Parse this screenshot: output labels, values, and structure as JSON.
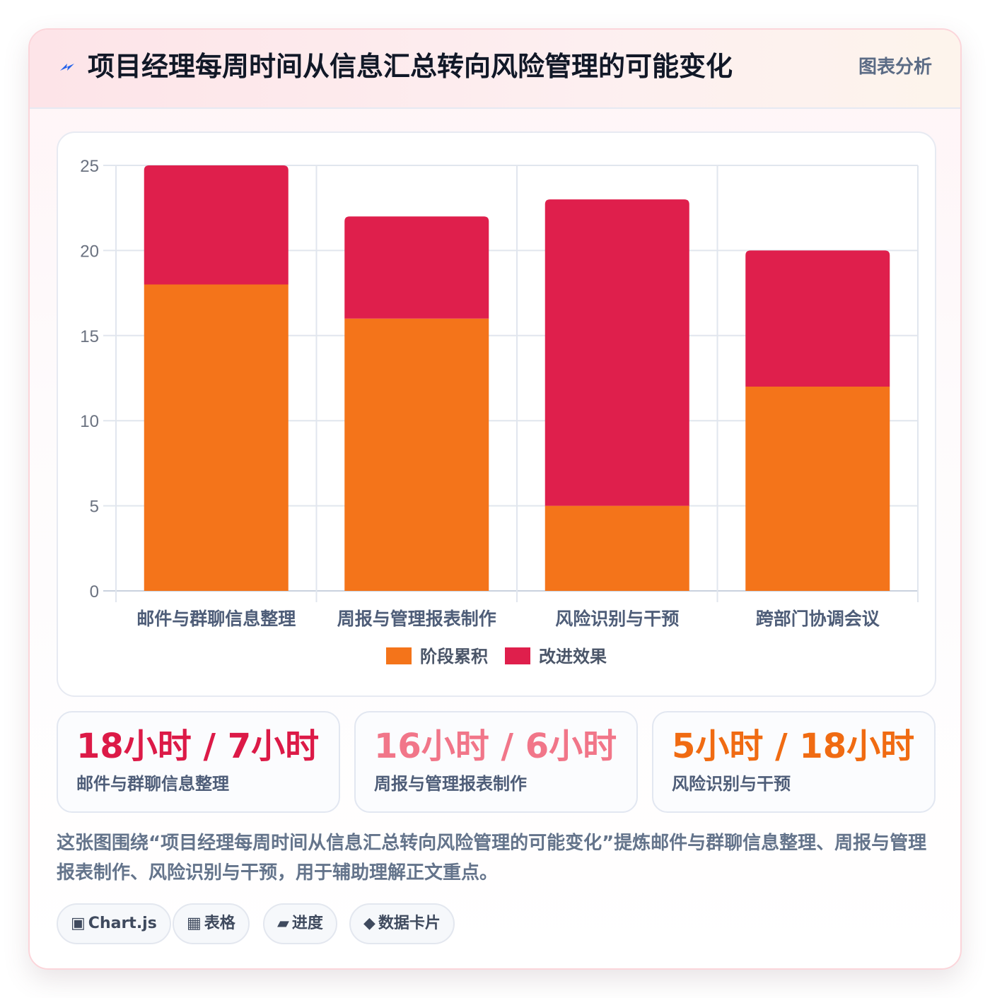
{
  "header": {
    "title": "项目经理每周时间从信息汇总转向风险管理的可能变化",
    "tag": "图表分析",
    "icon": "lightning-icon"
  },
  "chart_data": {
    "type": "bar",
    "stacked": true,
    "categories": [
      "邮件与群聊信息整理",
      "周报与管理报表制作",
      "风险识别与干预",
      "跨部门协调会议"
    ],
    "series": [
      {
        "name": "阶段累积",
        "values": [
          18,
          16,
          5,
          12
        ],
        "color": "#f4741a"
      },
      {
        "name": "改进效果",
        "values": [
          7,
          6,
          18,
          8
        ],
        "color": "#df1f4c"
      }
    ],
    "ylim": [
      0,
      25
    ],
    "yticks": [
      "0",
      "5",
      "10",
      "15",
      "20",
      "25"
    ],
    "grid": true,
    "legend_position": "bottom"
  },
  "stats": [
    {
      "value": "18小时 / 7小时",
      "label": "邮件与群聊信息整理",
      "color": "#dc1a47"
    },
    {
      "value": "16小时 / 6小时",
      "label": "周报与管理报表制作",
      "color": "#f17689"
    },
    {
      "value": "5小时 / 18小时",
      "label": "风险识别与干预",
      "color": "#f06b12"
    }
  ],
  "description": "这张图围绕“项目经理每周时间从信息汇总转向风险管理的可能变化”提炼邮件与群聊信息整理、周报与管理报表制作、风险识别与干预，用于辅助理解正文重点。",
  "chips": [
    {
      "icon": "▣",
      "icon_name": "chart-icon",
      "label": "Chart.js"
    },
    {
      "icon": "▦",
      "icon_name": "table-icon",
      "label": "表格"
    },
    {
      "icon": "▰",
      "icon_name": "progress-icon",
      "label": "进度"
    },
    {
      "icon": "◆",
      "icon_name": "diamond-icon",
      "label": "数据卡片"
    }
  ]
}
